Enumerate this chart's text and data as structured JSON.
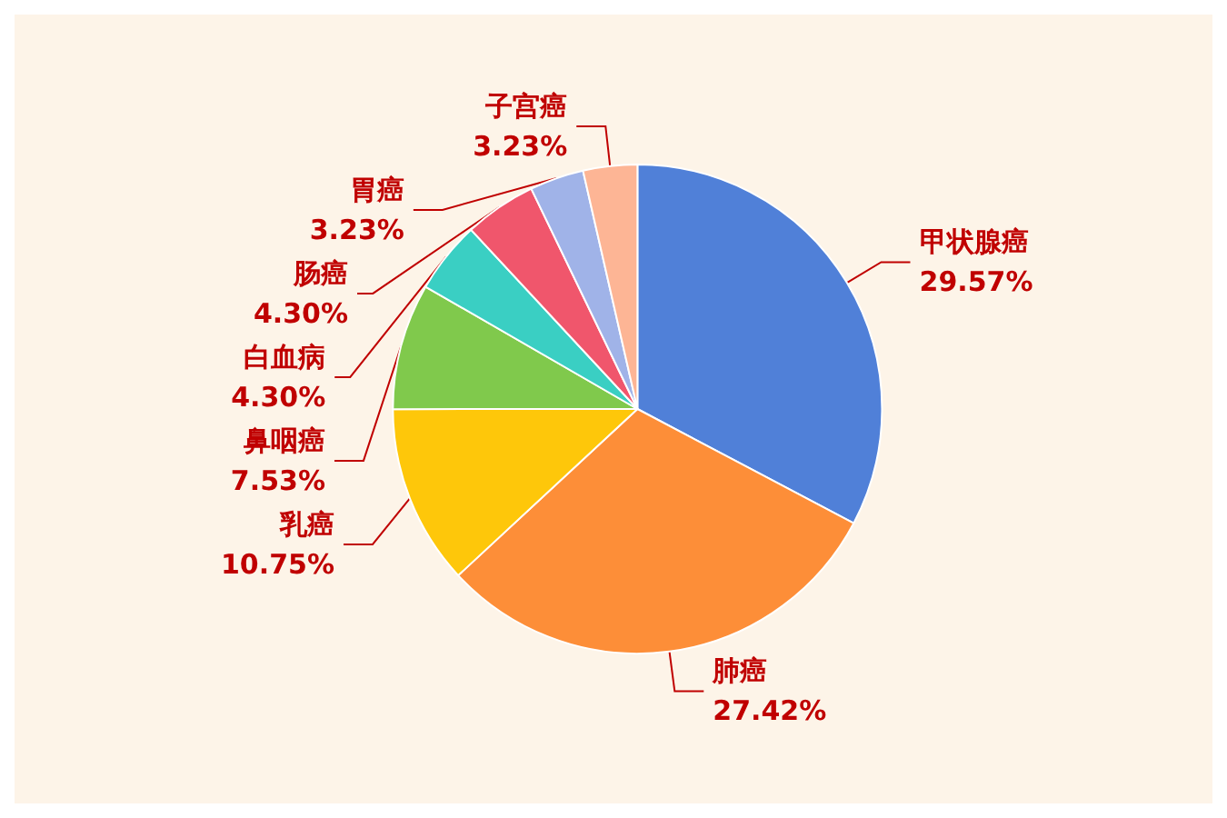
{
  "chart_data": {
    "type": "pie",
    "categories": [
      "甲状腺癌",
      "肺癌",
      "乳癌",
      "鼻咽癌",
      "白血病",
      "肠癌",
      "胃癌",
      "子宫癌"
    ],
    "values": [
      29.57,
      27.42,
      10.75,
      7.53,
      4.3,
      4.3,
      3.23,
      3.23
    ],
    "value_labels": [
      "29.57%",
      "27.42%",
      "10.75%",
      "7.53%",
      "4.30%",
      "4.30%",
      "3.23%",
      "3.23%"
    ],
    "colors": [
      "#5080d8",
      "#fd8e38",
      "#fec70a",
      "#80c94c",
      "#3acfc3",
      "#f0566c",
      "#a0b3e8",
      "#fdb595"
    ]
  }
}
